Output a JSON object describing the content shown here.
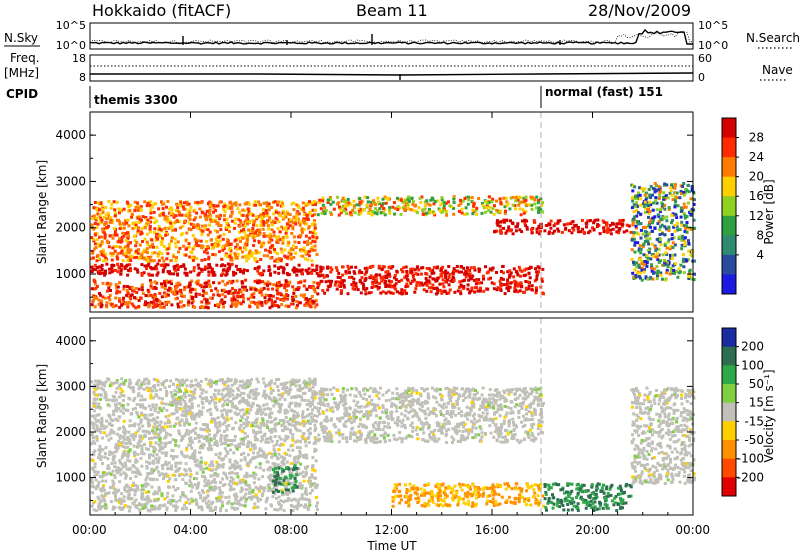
{
  "header": {
    "station": "Hokkaido (fitACF)",
    "beam": "Beam 11",
    "date": "28/Nov/2009"
  },
  "strip": {
    "nsky_label": "N.Sky",
    "nsky_ticks": [
      "10^5",
      "10^0"
    ],
    "nsearch_label": "N.Search",
    "nsearch_ticks": [
      "10^5",
      "10^0"
    ],
    "freq_label_1": "Freq.",
    "freq_label_2": "[MHz]",
    "freq_ticks": [
      "18",
      "8"
    ],
    "nave_label": "Nave",
    "nave_ticks": [
      "60",
      "0"
    ],
    "cpid_label": "CPID",
    "cpid_segments": [
      {
        "name": "themis 3300",
        "start": "00:00"
      },
      {
        "name": "normal (fast) 151",
        "start": "18:00"
      }
    ]
  },
  "chart_data": [
    {
      "type": "heatmap",
      "title": "",
      "ylabel": "Slant Range [km]",
      "xlabel": "",
      "ylim": [
        180,
        4500
      ],
      "yticks": [
        "1000",
        "2000",
        "3000",
        "4000"
      ],
      "colorbar": {
        "label": "Power [dB]",
        "ticks": [
          "28",
          "24",
          "20",
          "16",
          "12",
          "8",
          "4"
        ],
        "colors": [
          "#d40000",
          "#ff2a00",
          "#ff7a00",
          "#ffd000",
          "#8fd020",
          "#2ea040",
          "#2e8a70",
          "#2a4aa0",
          "#1a1ae0"
        ]
      },
      "mode_change_time": "18:00",
      "echo_regions": [
        {
          "t": [
            0,
            9
          ],
          "range": [
            300,
            900
          ],
          "power": "20-28"
        },
        {
          "t": [
            0,
            9
          ],
          "range": [
            1000,
            1250
          ],
          "power": "28"
        },
        {
          "t": [
            0,
            9
          ],
          "range": [
            1300,
            2600
          ],
          "power": "16-24"
        },
        {
          "t": [
            9,
            18
          ],
          "range": [
            2300,
            2700
          ],
          "power": "12-24"
        },
        {
          "t": [
            9,
            18
          ],
          "range": [
            600,
            1200
          ],
          "power": "24-28"
        },
        {
          "t": [
            16,
            21.5
          ],
          "range": [
            1900,
            2200
          ],
          "power": "28"
        },
        {
          "t": [
            21.5,
            24
          ],
          "range": [
            900,
            3000
          ],
          "power": "8-20"
        }
      ]
    },
    {
      "type": "heatmap",
      "title": "",
      "ylabel": "Slant Range [km]",
      "xlabel": "Time UT",
      "ylim": [
        180,
        4500
      ],
      "yticks": [
        "1000",
        "2000",
        "3000",
        "4000"
      ],
      "xticks": [
        "00:00",
        "04:00",
        "08:00",
        "12:00",
        "16:00",
        "20:00",
        "00:00"
      ],
      "colorbar": {
        "label": "Velocity [m s⁻¹]",
        "ticks": [
          "200",
          "100",
          "50",
          "15",
          "-15",
          "-50",
          "-100",
          "-200"
        ],
        "colors": [
          "#1a2aa0",
          "#2e6e4e",
          "#2fa84a",
          "#7fd040",
          "#c0c0b8",
          "#ffd000",
          "#ff9000",
          "#ff4a00",
          "#e00000"
        ]
      },
      "mode_change_time": "18:00",
      "echo_regions": [
        {
          "t": [
            0,
            9
          ],
          "range": [
            300,
            3200
          ],
          "velocity": "-15..15"
        },
        {
          "t": [
            7.2,
            8.2
          ],
          "range": [
            700,
            1300
          ],
          "velocity": "50..100"
        },
        {
          "t": [
            9,
            18
          ],
          "range": [
            1800,
            3000
          ],
          "velocity": "-15..15"
        },
        {
          "t": [
            12,
            18
          ],
          "range": [
            400,
            900
          ],
          "velocity": "-50..-100"
        },
        {
          "t": [
            18,
            21.5
          ],
          "range": [
            300,
            900
          ],
          "velocity": "50"
        },
        {
          "t": [
            21.5,
            24
          ],
          "range": [
            900,
            3000
          ],
          "velocity": "-15..15"
        }
      ]
    }
  ]
}
